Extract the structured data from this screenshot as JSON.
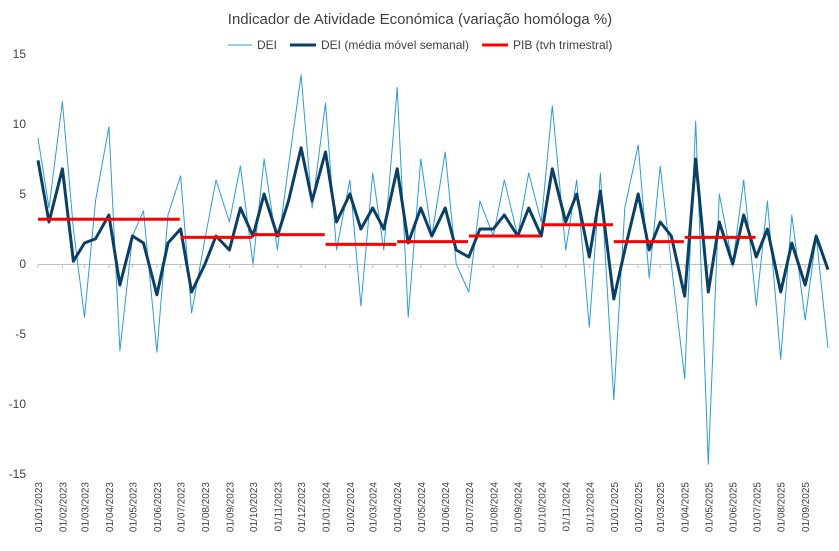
{
  "chart_data": {
    "type": "line",
    "title": "Indicador de Atividade Económica (variação homóloga %)",
    "xlabel": "",
    "ylabel": "",
    "ylim": [
      -15,
      15
    ],
    "yticks": [
      "15",
      "10",
      "5",
      "0",
      "-5",
      "-10",
      "-15"
    ],
    "xticks": [
      "01/01/2023",
      "01/02/2023",
      "01/03/2023",
      "01/04/2023",
      "01/05/2023",
      "01/06/2023",
      "01/07/2023",
      "01/08/2023",
      "01/09/2023",
      "01/10/2023",
      "01/11/2023",
      "01/12/2023",
      "01/01/2024",
      "01/02/2024",
      "01/03/2024",
      "01/04/2024",
      "01/05/2024",
      "01/06/2024",
      "01/07/2024",
      "01/08/2024",
      "01/09/2024",
      "01/10/2024",
      "01/11/2024",
      "01/12/2024",
      "01/01/2025",
      "01/02/2025",
      "01/03/2025",
      "01/04/2025",
      "01/05/2025",
      "01/06/2025",
      "01/07/2025",
      "01/08/2025",
      "01/09/2025"
    ],
    "legend": {
      "placement": "top-center"
    },
    "grid": false,
    "series": [
      {
        "name": "DEI",
        "color": "#2e9bd6",
        "style": "thin",
        "x": [
          "01/01/2023",
          "15/01/2023",
          "01/02/2023",
          "15/02/2023",
          "01/03/2023",
          "15/03/2023",
          "01/04/2023",
          "15/04/2023",
          "01/05/2023",
          "15/05/2023",
          "01/06/2023",
          "15/06/2023",
          "01/07/2023",
          "15/07/2023",
          "01/08/2023",
          "15/08/2023",
          "01/09/2023",
          "15/09/2023",
          "01/10/2023",
          "15/10/2023",
          "01/11/2023",
          "15/11/2023",
          "01/12/2023",
          "15/12/2023",
          "01/01/2024",
          "15/01/2024",
          "01/02/2024",
          "15/02/2024",
          "01/03/2024",
          "15/03/2024",
          "01/04/2024",
          "15/04/2024",
          "01/05/2024",
          "15/05/2024",
          "01/06/2024",
          "15/06/2024",
          "01/07/2024",
          "15/07/2024",
          "01/08/2024",
          "15/08/2024",
          "01/09/2024",
          "15/09/2024",
          "01/10/2024",
          "15/10/2024",
          "01/11/2024",
          "15/11/2024",
          "01/12/2024",
          "15/12/2024",
          "01/01/2025",
          "15/01/2025",
          "01/02/2025",
          "15/02/2025",
          "01/03/2025",
          "15/03/2025",
          "01/04/2025",
          "15/04/2025",
          "01/05/2025",
          "15/05/2025",
          "01/06/2025",
          "15/06/2025",
          "01/07/2025",
          "15/07/2025",
          "01/08/2025",
          "15/08/2025",
          "01/09/2025",
          "15/09/2025",
          "30/09/2025"
        ],
        "values": [
          9.0,
          4.0,
          11.6,
          2.5,
          -3.8,
          4.5,
          9.8,
          -6.2,
          2.0,
          3.8,
          -6.3,
          3.5,
          6.3,
          -3.5,
          1.8,
          6.0,
          3.0,
          7.0,
          0.0,
          7.5,
          1.0,
          7.0,
          13.5,
          4.0,
          11.5,
          1.0,
          6.0,
          -3.0,
          6.5,
          1.0,
          12.6,
          -3.8,
          7.5,
          2.0,
          8.0,
          0.0,
          -2.0,
          4.5,
          2.0,
          6.0,
          2.0,
          6.5,
          3.0,
          11.3,
          1.0,
          6.0,
          -4.5,
          6.5,
          -9.7,
          4.0,
          8.5,
          -1.0,
          7.0,
          0.0,
          -8.2,
          10.2,
          -14.3,
          5.0,
          0.0,
          6.0,
          -3.0,
          4.5,
          -6.8,
          3.5,
          -4.0,
          2.0,
          -6.0
        ]
      },
      {
        "name": "DEI (média móvel semanal)",
        "color": "#0b3f63",
        "style": "thick",
        "x": [
          "01/01/2023",
          "15/01/2023",
          "01/02/2023",
          "15/02/2023",
          "01/03/2023",
          "15/03/2023",
          "01/04/2023",
          "15/04/2023",
          "01/05/2023",
          "15/05/2023",
          "01/06/2023",
          "15/06/2023",
          "01/07/2023",
          "15/07/2023",
          "01/08/2023",
          "15/08/2023",
          "01/09/2023",
          "15/09/2023",
          "01/10/2023",
          "15/10/2023",
          "01/11/2023",
          "15/11/2023",
          "01/12/2023",
          "15/12/2023",
          "01/01/2024",
          "15/01/2024",
          "01/02/2024",
          "15/02/2024",
          "01/03/2024",
          "15/03/2024",
          "01/04/2024",
          "15/04/2024",
          "01/05/2024",
          "15/05/2024",
          "01/06/2024",
          "15/06/2024",
          "01/07/2024",
          "15/07/2024",
          "01/08/2024",
          "15/08/2024",
          "01/09/2024",
          "15/09/2024",
          "01/10/2024",
          "15/10/2024",
          "01/11/2024",
          "15/11/2024",
          "01/12/2024",
          "15/12/2024",
          "01/01/2025",
          "15/01/2025",
          "01/02/2025",
          "15/02/2025",
          "01/03/2025",
          "15/03/2025",
          "01/04/2025",
          "15/04/2025",
          "01/05/2025",
          "15/05/2025",
          "01/06/2025",
          "15/06/2025",
          "01/07/2025",
          "15/07/2025",
          "01/08/2025",
          "15/08/2025",
          "01/09/2025",
          "15/09/2025",
          "30/09/2025"
        ],
        "values": [
          7.4,
          3.0,
          6.8,
          0.2,
          1.5,
          1.8,
          3.5,
          -1.5,
          2.0,
          1.5,
          -2.2,
          1.5,
          2.5,
          -2.0,
          0.0,
          2.0,
          1.0,
          4.0,
          2.0,
          5.0,
          2.0,
          4.5,
          8.3,
          4.5,
          8.0,
          3.0,
          5.0,
          2.5,
          4.0,
          2.5,
          6.8,
          1.5,
          4.0,
          2.0,
          4.0,
          1.0,
          0.5,
          2.5,
          2.5,
          3.5,
          2.0,
          4.0,
          2.0,
          6.8,
          3.0,
          5.0,
          0.5,
          5.2,
          -2.5,
          1.0,
          5.0,
          1.0,
          3.0,
          2.0,
          -2.3,
          7.5,
          -2.0,
          3.0,
          0.0,
          3.5,
          0.5,
          2.5,
          -2.0,
          1.5,
          -1.5,
          2.0,
          -0.4
        ]
      },
      {
        "name": "PIB (tvh trimestral)",
        "color": "#ff0000",
        "style": "step",
        "quarters": [
          {
            "from": "01/01/2023",
            "to": "30/06/2023",
            "value": 3.2
          },
          {
            "from": "01/07/2023",
            "to": "30/09/2023",
            "value": 1.9
          },
          {
            "from": "01/10/2023",
            "to": "31/12/2023",
            "value": 2.1
          },
          {
            "from": "01/01/2024",
            "to": "31/03/2024",
            "value": 1.4
          },
          {
            "from": "01/04/2024",
            "to": "30/06/2024",
            "value": 1.6
          },
          {
            "from": "01/07/2024",
            "to": "30/09/2024",
            "value": 2.0
          },
          {
            "from": "01/10/2024",
            "to": "31/12/2024",
            "value": 2.8
          },
          {
            "from": "01/01/2025",
            "to": "31/03/2025",
            "value": 1.6
          },
          {
            "from": "01/04/2025",
            "to": "30/06/2025",
            "value": 1.9
          }
        ]
      }
    ]
  }
}
